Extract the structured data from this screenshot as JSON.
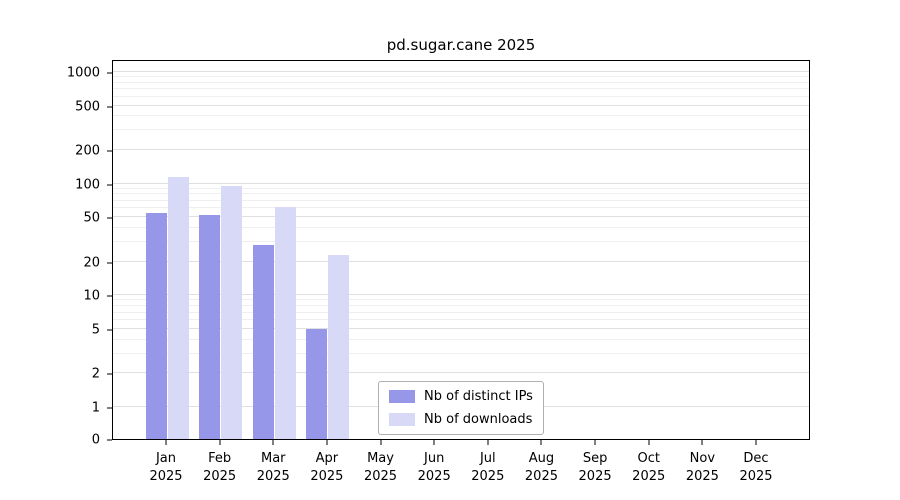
{
  "title": "pd.sugar.cane 2025",
  "colors": {
    "distinct_ips": "#9797ea",
    "downloads": "#d8d8f7",
    "grid_major": "#e0e0e0",
    "grid_minor": "#efefef",
    "axis": "#000000",
    "legend_border": "#b0b0b0"
  },
  "chart_data": {
    "type": "bar",
    "title": "pd.sugar.cane 2025",
    "categories": [
      "Jan 2025",
      "Feb 2025",
      "Mar 2025",
      "Apr 2025",
      "May 2025",
      "Jun 2025",
      "Jul 2025",
      "Aug 2025",
      "Sep 2025",
      "Oct 2025",
      "Nov 2025",
      "Dec 2025"
    ],
    "months": [
      "Jan",
      "Feb",
      "Mar",
      "Apr",
      "May",
      "Jun",
      "Jul",
      "Aug",
      "Sep",
      "Oct",
      "Nov",
      "Dec"
    ],
    "year": "2025",
    "series": [
      {
        "name": "Nb of distinct IPs",
        "values": [
          55,
          52,
          28,
          5,
          0,
          0,
          0,
          0,
          0,
          0,
          0,
          0
        ],
        "color_key": "distinct_ips"
      },
      {
        "name": "Nb of downloads",
        "values": [
          115,
          95,
          62,
          23,
          0,
          0,
          0,
          0,
          0,
          0,
          0,
          0
        ],
        "color_key": "downloads"
      }
    ],
    "y_ticks": [
      0,
      1,
      2,
      5,
      10,
      20,
      50,
      100,
      200,
      500,
      1000
    ],
    "y_minor_ticks": [
      3,
      4,
      6,
      7,
      8,
      9,
      30,
      40,
      60,
      70,
      80,
      90,
      300,
      400,
      600,
      700,
      800,
      900
    ],
    "y_scale": "symlog",
    "ylim": [
      0,
      1300
    ],
    "grid": true,
    "legend_position": "bottom-center",
    "xlabel": "",
    "ylabel": ""
  }
}
